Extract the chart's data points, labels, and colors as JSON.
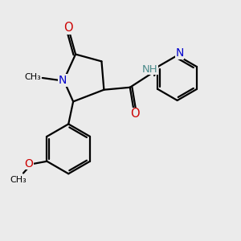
{
  "bg_color": "#ebebeb",
  "bond_color": "#000000",
  "N_color": "#0000cc",
  "O_color": "#cc0000",
  "H_color": "#4a8a8a",
  "line_width": 1.6,
  "font_size": 9.5,
  "fig_size": [
    3.0,
    3.0
  ],
  "dpi": 100,
  "xlim": [
    0,
    10
  ],
  "ylim": [
    0,
    10
  ]
}
